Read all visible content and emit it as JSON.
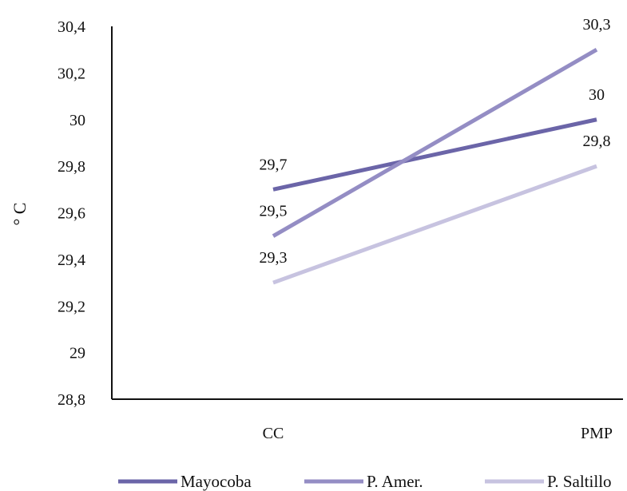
{
  "chart_data": {
    "type": "line",
    "title": "",
    "xlabel": "",
    "ylabel": "° C",
    "categories": [
      "CC",
      "PMP"
    ],
    "ylim": [
      28.8,
      30.4
    ],
    "yticks": [
      "30,4",
      "30,2",
      "30",
      "29,8",
      "29,6",
      "29,4",
      "29,2",
      "29",
      "28,8"
    ],
    "ytick_values": [
      30.4,
      30.2,
      30.0,
      29.8,
      29.6,
      29.4,
      29.2,
      29.0,
      28.8
    ],
    "grid": false,
    "legend_position": "bottom",
    "series": [
      {
        "name": "Mayocoba",
        "values": [
          29.7,
          30.0
        ],
        "labels": [
          "29,7",
          "30"
        ],
        "color": "#6b65a8"
      },
      {
        "name": "P. Amer.",
        "values": [
          29.5,
          30.3
        ],
        "labels": [
          "29,5",
          "30,3"
        ],
        "color": "#948dc4"
      },
      {
        "name": "P. Saltillo",
        "values": [
          29.3,
          29.8
        ],
        "labels": [
          "29,3",
          "29,8"
        ],
        "color": "#c7c3e0"
      }
    ]
  }
}
